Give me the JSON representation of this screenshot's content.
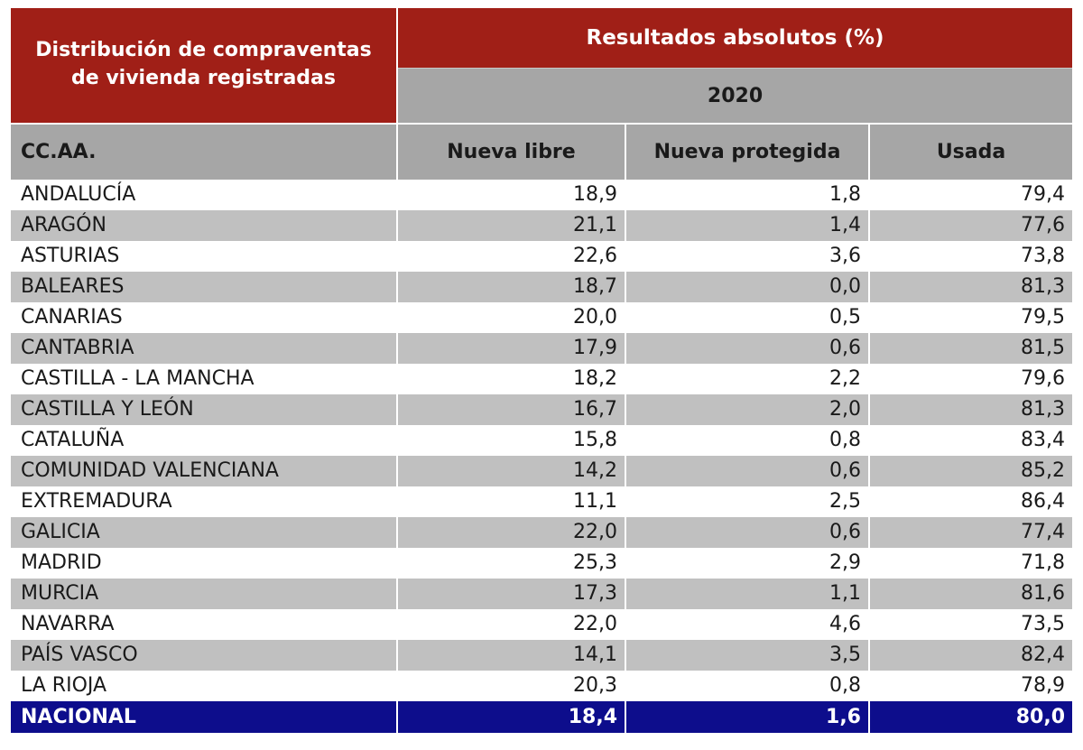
{
  "header": {
    "title_line1": "Distribución de compraventas",
    "title_line2": "de vivienda registradas",
    "results_label": "Resultados absolutos (%)",
    "year": "2020"
  },
  "columns": {
    "region": "CC.AA.",
    "nueva_libre": "Nueva libre",
    "nueva_protegida": "Nueva protegida",
    "usada": "Usada"
  },
  "rows": [
    {
      "region": "ANDALUCÍA",
      "nueva_libre": "18,9",
      "nueva_protegida": "1,8",
      "usada": "79,4"
    },
    {
      "region": "ARAGÓN",
      "nueva_libre": "21,1",
      "nueva_protegida": "1,4",
      "usada": "77,6"
    },
    {
      "region": "ASTURIAS",
      "nueva_libre": "22,6",
      "nueva_protegida": "3,6",
      "usada": "73,8"
    },
    {
      "region": "BALEARES",
      "nueva_libre": "18,7",
      "nueva_protegida": "0,0",
      "usada": "81,3"
    },
    {
      "region": "CANARIAS",
      "nueva_libre": "20,0",
      "nueva_protegida": "0,5",
      "usada": "79,5"
    },
    {
      "region": "CANTABRIA",
      "nueva_libre": "17,9",
      "nueva_protegida": "0,6",
      "usada": "81,5"
    },
    {
      "region": "CASTILLA - LA MANCHA",
      "nueva_libre": "18,2",
      "nueva_protegida": "2,2",
      "usada": "79,6"
    },
    {
      "region": "CASTILLA Y LEÓN",
      "nueva_libre": "16,7",
      "nueva_protegida": "2,0",
      "usada": "81,3"
    },
    {
      "region": "CATALUÑA",
      "nueva_libre": "15,8",
      "nueva_protegida": "0,8",
      "usada": "83,4"
    },
    {
      "region": "COMUNIDAD VALENCIANA",
      "nueva_libre": "14,2",
      "nueva_protegida": "0,6",
      "usada": "85,2"
    },
    {
      "region": "EXTREMADURA",
      "nueva_libre": "11,1",
      "nueva_protegida": "2,5",
      "usada": "86,4"
    },
    {
      "region": "GALICIA",
      "nueva_libre": "22,0",
      "nueva_protegida": "0,6",
      "usada": "77,4"
    },
    {
      "region": "MADRID",
      "nueva_libre": "25,3",
      "nueva_protegida": "2,9",
      "usada": "71,8"
    },
    {
      "region": "MURCIA",
      "nueva_libre": "17,3",
      "nueva_protegida": "1,1",
      "usada": "81,6"
    },
    {
      "region": "NAVARRA",
      "nueva_libre": "22,0",
      "nueva_protegida": "4,6",
      "usada": "73,5"
    },
    {
      "region": "PAÍS VASCO",
      "nueva_libre": "14,1",
      "nueva_protegida": "3,5",
      "usada": "82,4"
    },
    {
      "region": "LA RIOJA",
      "nueva_libre": "20,3",
      "nueva_protegida": "0,8",
      "usada": "78,9"
    }
  ],
  "total": {
    "region": "NACIONAL",
    "nueva_libre": "18,4",
    "nueva_protegida": "1,6",
    "usada": "80,0"
  },
  "colors": {
    "header_red": "#a01f17",
    "header_gray": "#a6a6a6",
    "stripe_gray": "#c0c0c0",
    "total_blue": "#0d0d8c"
  }
}
